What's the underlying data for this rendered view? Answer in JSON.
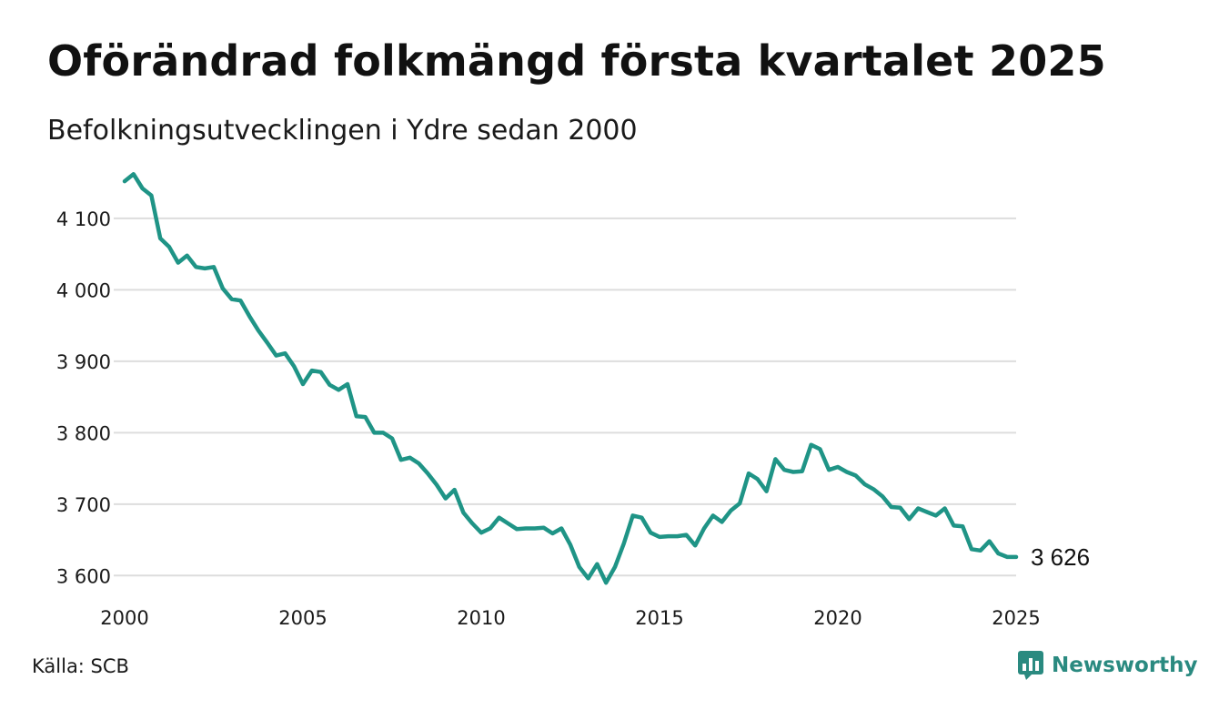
{
  "header": {
    "title": "Oförändrad folkmängd första kvartalet 2025",
    "subtitle": "Befolkningsutvecklingen i Ydre sedan 2000"
  },
  "footer": {
    "source": "Källa: SCB",
    "brand": "Newsworthy",
    "brand_icon": "bar-chart-speech-icon"
  },
  "colors": {
    "line": "#1f9486",
    "grid": "#dddddd",
    "brand": "#2a8a80"
  },
  "chart_data": {
    "type": "line",
    "title": "Oförändrad folkmängd första kvartalet 2025",
    "subtitle": "Befolkningsutvecklingen i Ydre sedan 2000",
    "xlabel": "",
    "ylabel": "",
    "xlim": [
      2000,
      2025
    ],
    "ylim": [
      3580,
      4170
    ],
    "grid": true,
    "legend": "none",
    "x_ticks": [
      {
        "value": 2000,
        "label": "2000"
      },
      {
        "value": 2005,
        "label": "2005"
      },
      {
        "value": 2010,
        "label": "2010"
      },
      {
        "value": 2015,
        "label": "2015"
      },
      {
        "value": 2020,
        "label": "2020"
      },
      {
        "value": 2025,
        "label": "2025"
      }
    ],
    "y_ticks": [
      {
        "value": 3600,
        "label": "3 600"
      },
      {
        "value": 3700,
        "label": "3 700"
      },
      {
        "value": 3800,
        "label": "3 800"
      },
      {
        "value": 3900,
        "label": "3 900"
      },
      {
        "value": 4000,
        "label": "4 000"
      },
      {
        "value": 4100,
        "label": "4 100"
      }
    ],
    "end_label": "3 626",
    "series": [
      {
        "values": [
          4152,
          4162,
          4142,
          4132,
          4072,
          4060,
          4038,
          4048,
          4032,
          4030,
          4032,
          4002,
          3987,
          3985,
          3963,
          3943,
          3926,
          3908,
          3911,
          3893,
          3868,
          3887,
          3885,
          3867,
          3860,
          3868,
          3823,
          3822,
          3800,
          3800,
          3792,
          3762,
          3765,
          3757,
          3743,
          3727,
          3708,
          3720,
          3688,
          3673,
          3660,
          3666,
          3681,
          3673,
          3665,
          3666,
          3666,
          3667,
          3659,
          3666,
          3643,
          3612,
          3596,
          3616,
          3590,
          3612,
          3645,
          3684,
          3681,
          3660,
          3654,
          3655,
          3655,
          3657,
          3642,
          3666,
          3684,
          3675,
          3691,
          3701,
          3743,
          3735,
          3718,
          3763,
          3748,
          3745,
          3746,
          3783,
          3777,
          3748,
          3752,
          3745,
          3740,
          3728,
          3721,
          3711,
          3696,
          3695,
          3679,
          3694,
          3689,
          3684,
          3694,
          3670,
          3669,
          3637,
          3635,
          3648,
          3631,
          3626,
          3626
        ]
      }
    ]
  }
}
